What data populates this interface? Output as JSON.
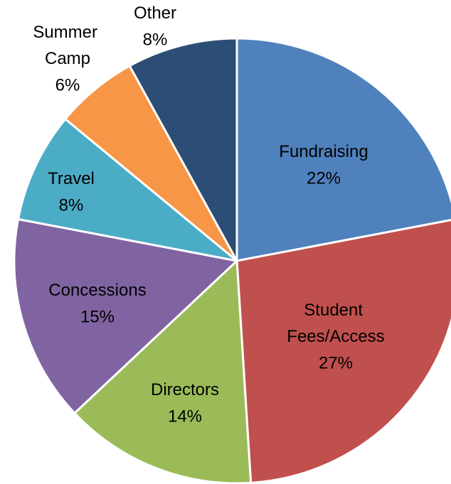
{
  "chart_data": {
    "type": "pie",
    "categories": [
      "Fundraising",
      "Student Fees/Access",
      "Directors",
      "Concessions",
      "Travel",
      "Summer Camp",
      "Other"
    ],
    "values": [
      22,
      27,
      14,
      15,
      8,
      6,
      8
    ],
    "value_labels": [
      "22%",
      "27%",
      "14%",
      "15%",
      "8%",
      "6%",
      "8%"
    ],
    "colors": [
      "#4f81bd",
      "#c0504d",
      "#9bbb59",
      "#8064a2",
      "#4bacc6",
      "#f79646",
      "#2c4d75"
    ]
  }
}
